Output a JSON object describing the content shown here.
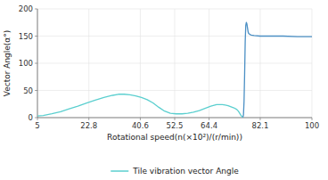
{
  "chart_data": {
    "type": "line",
    "title": "",
    "xlabel": "Rotational speed(n(×10²)/(r/min))",
    "ylabel": "Vector Angle(α°)",
    "x": [
      5,
      7,
      10,
      13,
      16,
      19,
      22,
      25,
      28,
      31,
      33,
      35,
      37,
      39,
      41,
      43,
      45,
      47,
      49,
      51,
      53,
      55,
      57,
      59,
      61,
      63,
      65,
      67,
      68,
      69,
      70,
      71,
      72,
      73,
      74,
      74.5,
      75,
      75.3,
      75.6,
      75.9,
      76.1,
      76.3,
      76.5,
      76.7,
      76.9,
      77.1,
      77.3,
      77.5,
      77.7,
      77.9,
      78.0,
      78.1,
      78.3,
      78.5,
      79,
      80,
      82,
      84,
      87,
      90,
      95,
      100
    ],
    "series": [
      {
        "name": "Tile vibration vector Angle",
        "color": "#5bcfcf",
        "values": [
          3,
          4,
          7,
          11,
          16,
          21,
          27,
          32,
          37,
          41,
          43,
          43,
          42,
          40,
          37,
          33,
          27,
          19,
          12,
          8,
          7,
          7,
          8,
          10,
          13,
          17,
          21,
          24,
          24,
          24,
          23,
          22,
          20,
          18,
          15,
          12,
          8,
          5,
          3,
          1,
          0.5,
          null,
          null,
          null,
          null,
          null,
          null,
          null,
          null,
          null,
          null,
          null,
          null,
          null,
          null,
          null,
          null,
          null,
          null,
          null,
          null,
          null
        ]
      },
      {
        "color": "#4b8fc4",
        "values": [
          null,
          null,
          null,
          null,
          null,
          null,
          null,
          null,
          null,
          null,
          null,
          null,
          null,
          null,
          null,
          null,
          null,
          null,
          null,
          null,
          null,
          null,
          null,
          null,
          null,
          null,
          null,
          null,
          null,
          null,
          null,
          null,
          null,
          null,
          null,
          null,
          null,
          null,
          null,
          null,
          0.5,
          5,
          30,
          80,
          140,
          170,
          175,
          172,
          165,
          158,
          156,
          155,
          154,
          153,
          152,
          151,
          150,
          150,
          150,
          150,
          149,
          149
        ]
      }
    ],
    "xlim": [
      5,
      100
    ],
    "ylim": [
      0,
      200
    ],
    "xticks": [
      5,
      22.8,
      40.6,
      52.5,
      64.4,
      82.1,
      100
    ],
    "yticks": [
      0,
      50,
      100,
      150,
      200
    ],
    "grid": true,
    "legend": "bottom"
  }
}
